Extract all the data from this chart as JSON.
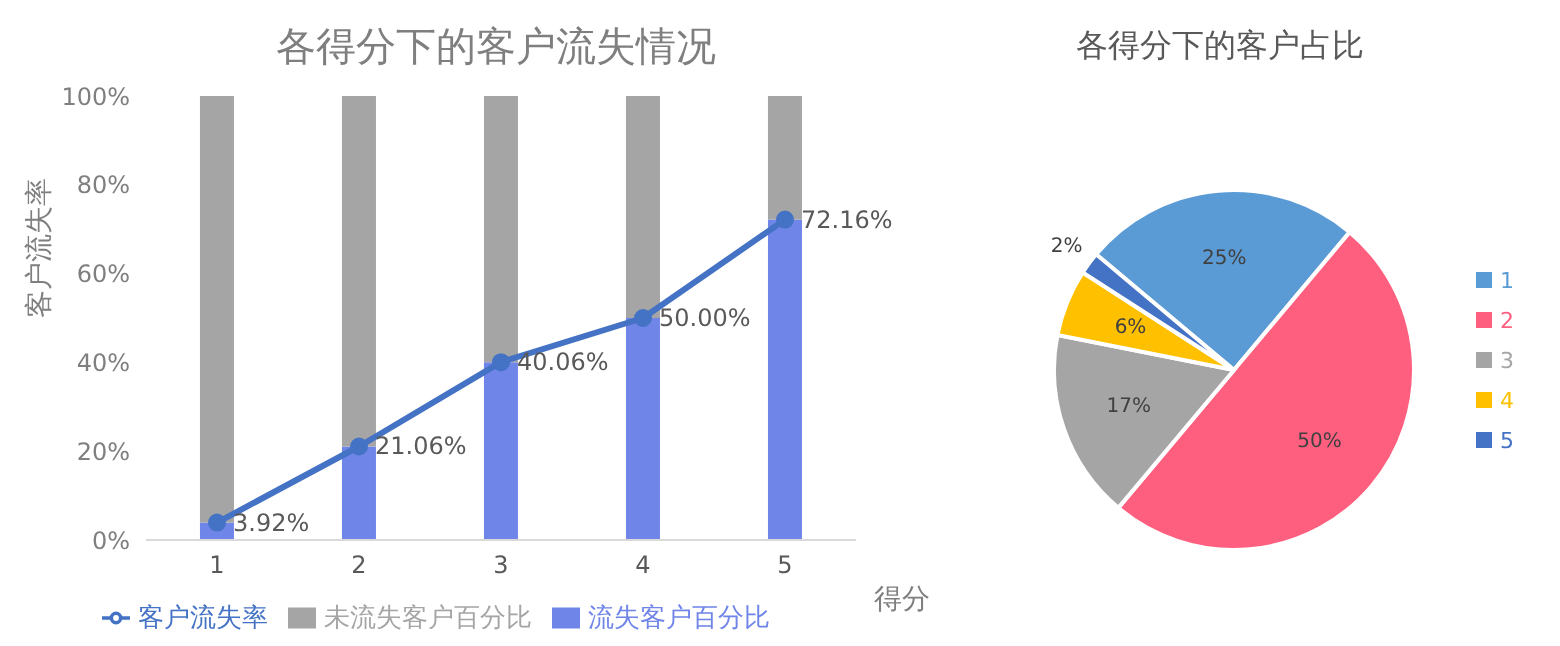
{
  "chart_data": [
    {
      "type": "bar",
      "title": "各得分下的客户流失情况",
      "xlabel": "得分",
      "ylabel": "客户流失率",
      "stacked": true,
      "legend": "bottom",
      "grid": false,
      "categories": [
        "1",
        "2",
        "3",
        "4",
        "5"
      ],
      "series": [
        {
          "name": "流失客户百分比",
          "color": "#6f85e8",
          "values": [
            3.92,
            21.06,
            40.06,
            50.0,
            72.16
          ]
        },
        {
          "name": "未流失客户百分比",
          "color": "#a5a5a5",
          "values": [
            96.08,
            78.94,
            59.94,
            50.0,
            27.84
          ]
        },
        {
          "name": "客户流失率",
          "type": "line",
          "color": "#4472c4",
          "marker": "circle",
          "values": [
            3.92,
            21.06,
            40.06,
            50.0,
            72.16
          ],
          "value_labels": [
            "3.92%",
            "21.06%",
            "40.06%",
            "50.00%",
            "72.16%"
          ]
        }
      ],
      "ylim": [
        0,
        100
      ],
      "yticks": [
        {
          "value": 0,
          "label": "0%"
        },
        {
          "value": 20,
          "label": "20%"
        },
        {
          "value": 40,
          "label": "40%"
        },
        {
          "value": 60,
          "label": "60%"
        },
        {
          "value": 80,
          "label": "80%"
        },
        {
          "value": 100,
          "label": "100%"
        }
      ]
    },
    {
      "type": "pie",
      "title": "各得分下的客户占比",
      "legend": "right",
      "categories": [
        "1",
        "2",
        "3",
        "4",
        "5"
      ],
      "values": [
        25,
        50,
        17,
        6,
        2
      ],
      "colors": [
        "#5b9bd5",
        "#ff5f7e",
        "#a5a5a5",
        "#ffc000",
        "#4472c4"
      ],
      "value_labels": [
        "25%",
        "50%",
        "17%",
        "6%",
        "2%"
      ]
    }
  ]
}
